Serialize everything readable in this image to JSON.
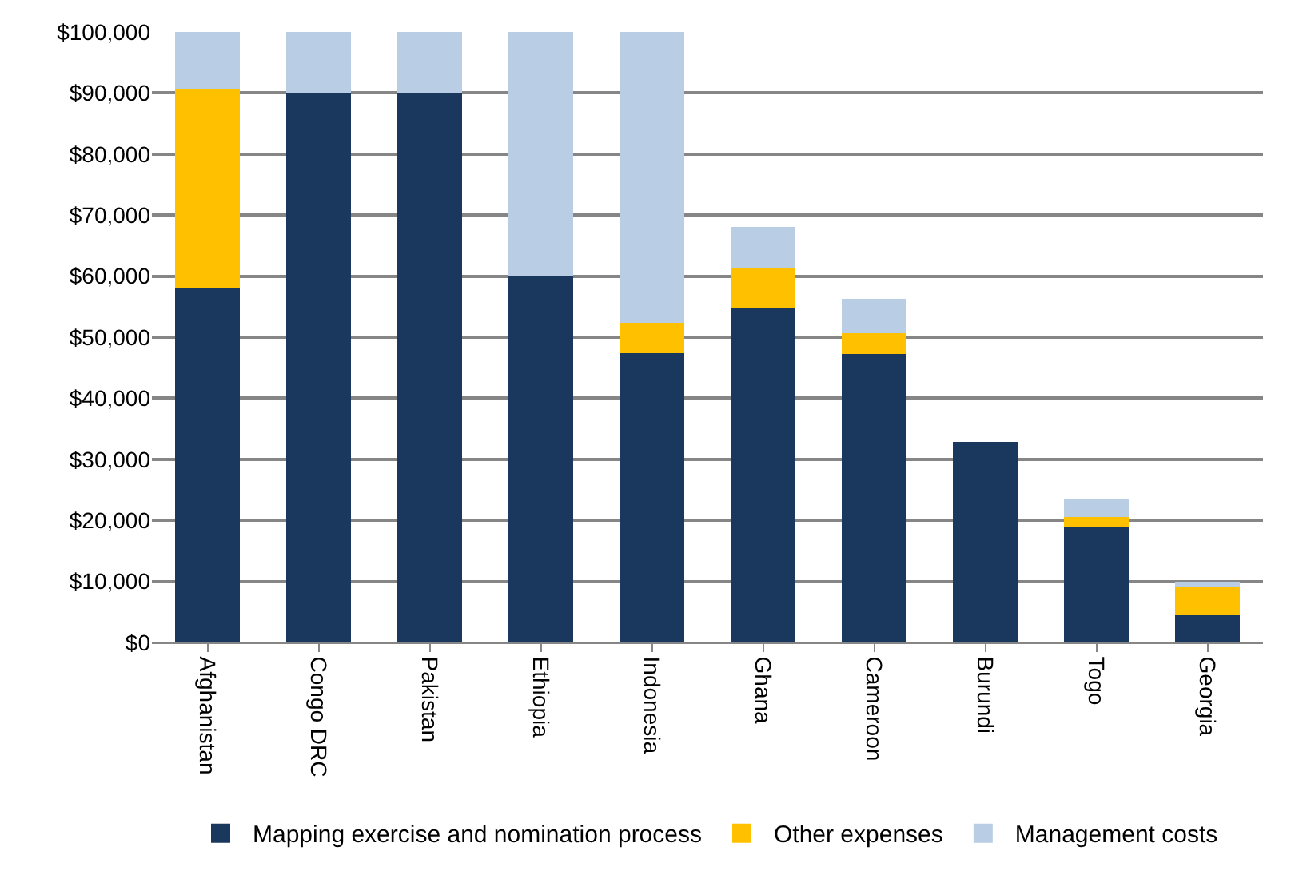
{
  "chart_data": {
    "type": "bar",
    "stacked": true,
    "categories": [
      "Afghanistan",
      "Congo DRC",
      "Pakistan",
      "Ethiopia",
      "Indonesia",
      "Ghana",
      "Cameroon",
      "Burundi",
      "Togo",
      "Georgia"
    ],
    "series": [
      {
        "name": "Mapping exercise and nomination process",
        "color": "#1a375e",
        "values": [
          58000,
          90000,
          90000,
          60000,
          47400,
          54800,
          47200,
          32900,
          18800,
          4500
        ]
      },
      {
        "name": "Other expenses",
        "color": "#ffc000",
        "values": [
          32700,
          0,
          0,
          0,
          4900,
          6600,
          3400,
          0,
          1800,
          4500
        ]
      },
      {
        "name": "Management costs",
        "color": "#b9cde5",
        "values": [
          9300,
          10000,
          10000,
          40000,
          47700,
          6700,
          5700,
          0,
          2800,
          1000
        ]
      }
    ],
    "ylim": [
      0,
      100000
    ],
    "yticks": [
      {
        "value": 0,
        "label": "$0"
      },
      {
        "value": 10000,
        "label": "$10,000"
      },
      {
        "value": 20000,
        "label": "$20,000"
      },
      {
        "value": 30000,
        "label": "$30,000"
      },
      {
        "value": 40000,
        "label": "$40,000"
      },
      {
        "value": 50000,
        "label": "$50,000"
      },
      {
        "value": 60000,
        "label": "$60,000"
      },
      {
        "value": 70000,
        "label": "$70,000"
      },
      {
        "value": 80000,
        "label": "$80,000"
      },
      {
        "value": 90000,
        "label": "$90,000"
      },
      {
        "value": 100000,
        "label": "$100,000"
      }
    ],
    "grid": "y",
    "legend": "bottom"
  }
}
